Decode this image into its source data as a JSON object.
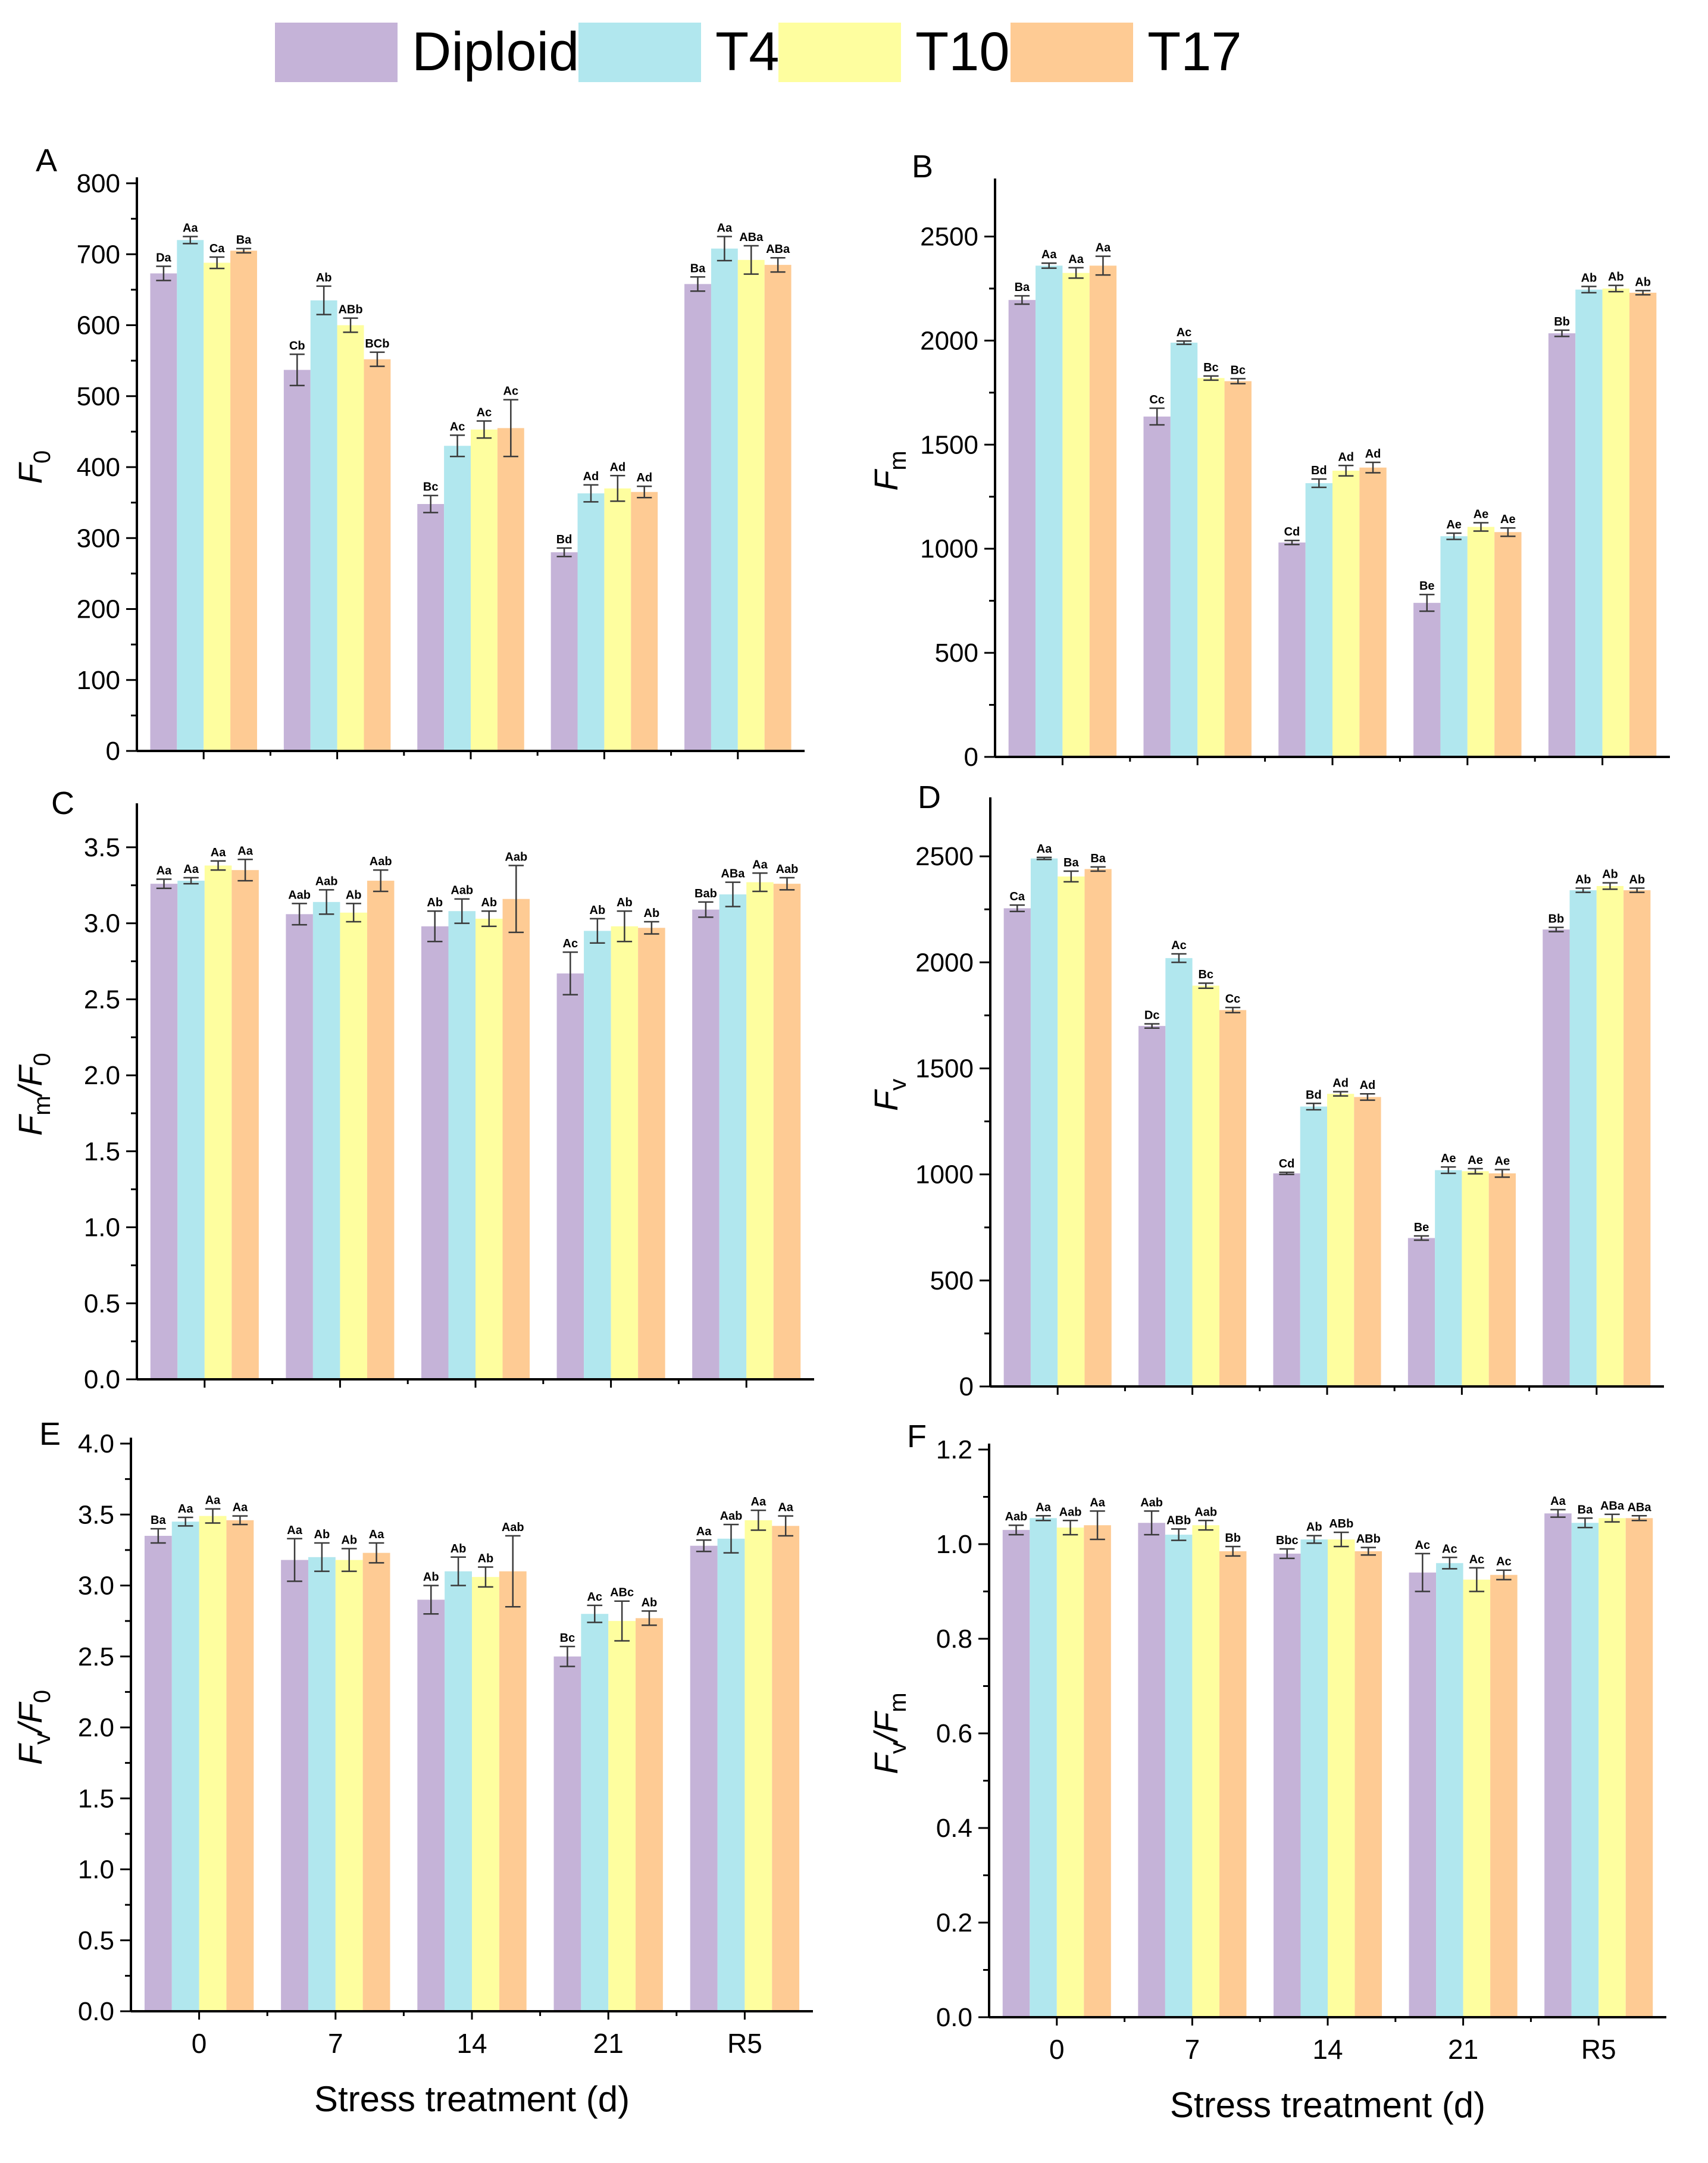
{
  "legend": {
    "items": [
      {
        "label": "Diploid",
        "color": "#c5b3d8"
      },
      {
        "label": "T4",
        "color": "#b1e7ee"
      },
      {
        "label": "T10",
        "color": "#fefe9f"
      },
      {
        "label": "T17",
        "color": "#fecb94"
      }
    ]
  },
  "chart_data": [
    {
      "panel": "A",
      "type": "bar",
      "ylabel": "F",
      "ylabel_sub": "0",
      "ylabel_sub2": "",
      "ylim": [
        0,
        800
      ],
      "yticks": [
        0,
        100,
        200,
        300,
        400,
        500,
        600,
        700,
        800
      ],
      "ytick_labels": [
        "0",
        "100",
        "200",
        "300",
        "400",
        "500",
        "600",
        "700",
        "800"
      ],
      "categories": [
        "0",
        "7",
        "14",
        "21",
        "R5"
      ],
      "xlabel": "",
      "series": [
        {
          "name": "Diploid",
          "values": [
            673,
            537,
            348,
            280,
            658
          ],
          "errors": [
            10,
            22,
            12,
            6,
            10
          ],
          "labels": [
            "Da",
            "Cb",
            "Bc",
            "Bd",
            "Ba"
          ]
        },
        {
          "name": "T4",
          "values": [
            720,
            635,
            430,
            363,
            708
          ],
          "errors": [
            5,
            20,
            15,
            12,
            17
          ],
          "labels": [
            "Aa",
            "Ab",
            "Ac",
            "Ad",
            "Aa"
          ]
        },
        {
          "name": "T10",
          "values": [
            688,
            600,
            453,
            370,
            692
          ],
          "errors": [
            8,
            10,
            12,
            18,
            20
          ],
          "labels": [
            "Ca",
            "ABb",
            "Ac",
            "Ad",
            "ABa"
          ]
        },
        {
          "name": "T17",
          "values": [
            705,
            552,
            455,
            365,
            685
          ],
          "errors": [
            3,
            10,
            40,
            8,
            10
          ],
          "labels": [
            "Ba",
            "BCb",
            "Ac",
            "Ad",
            "ABa"
          ]
        }
      ]
    },
    {
      "panel": "B",
      "type": "bar",
      "ylabel": "F",
      "ylabel_sub": "m",
      "ylabel_sub2": "",
      "ylim": [
        0,
        2750
      ],
      "yticks": [
        0,
        500,
        1000,
        1500,
        2000,
        2500
      ],
      "ytick_labels": [
        "0",
        "500",
        "1000",
        "1500",
        "2000",
        "2500"
      ],
      "categories": [
        "0",
        "7",
        "14",
        "21",
        "R5"
      ],
      "xlabel": "",
      "series": [
        {
          "name": "Diploid",
          "values": [
            2195,
            1635,
            1030,
            740,
            2035
          ],
          "errors": [
            20,
            40,
            10,
            40,
            15
          ],
          "labels": [
            "Ba",
            "Cc",
            "Cd",
            "Be",
            "Bb"
          ]
        },
        {
          "name": "T4",
          "values": [
            2360,
            1990,
            1315,
            1060,
            2245
          ],
          "errors": [
            12,
            8,
            20,
            15,
            15
          ],
          "labels": [
            "Aa",
            "Ac",
            "Bd",
            "Ae",
            "Ab"
          ]
        },
        {
          "name": "T10",
          "values": [
            2325,
            1820,
            1375,
            1105,
            2250
          ],
          "errors": [
            25,
            10,
            25,
            20,
            15
          ],
          "labels": [
            "Aa",
            "Bc",
            "Ad",
            "Ae",
            "Ab"
          ]
        },
        {
          "name": "T17",
          "values": [
            2360,
            1805,
            1390,
            1080,
            2230
          ],
          "errors": [
            45,
            12,
            25,
            20,
            10
          ],
          "labels": [
            "Aa",
            "Bc",
            "Ad",
            "Ae",
            "Ab"
          ]
        }
      ]
    },
    {
      "panel": "C",
      "type": "bar",
      "ylabel": "F",
      "ylabel_sub": "m",
      "ylabel_mid": "/F",
      "ylabel_sub2": "0",
      "ylim": [
        0,
        3.75
      ],
      "yticks": [
        0,
        0.5,
        1.0,
        1.5,
        2.0,
        2.5,
        3.0,
        3.5
      ],
      "ytick_labels": [
        "0.0",
        "0.5",
        "1.0",
        "1.5",
        "2.0",
        "2.5",
        "3.0",
        "3.5"
      ],
      "categories": [
        "0",
        "7",
        "14",
        "21",
        "R5"
      ],
      "xlabel": "",
      "series": [
        {
          "name": "Diploid",
          "values": [
            3.26,
            3.06,
            2.98,
            2.67,
            3.09
          ],
          "errors": [
            0.03,
            0.07,
            0.1,
            0.14,
            0.05
          ],
          "labels": [
            "Aa",
            "Aab",
            "Ab",
            "Ac",
            "Bab"
          ]
        },
        {
          "name": "T4",
          "values": [
            3.28,
            3.14,
            3.08,
            2.95,
            3.19
          ],
          "errors": [
            0.02,
            0.08,
            0.08,
            0.08,
            0.08
          ],
          "labels": [
            "Aa",
            "Aab",
            "Aab",
            "Ab",
            "ABa"
          ]
        },
        {
          "name": "T10",
          "values": [
            3.38,
            3.07,
            3.03,
            2.98,
            3.27
          ],
          "errors": [
            0.03,
            0.06,
            0.05,
            0.1,
            0.06
          ],
          "labels": [
            "Aa",
            "Ab",
            "Ab",
            "Ab",
            "Aa"
          ]
        },
        {
          "name": "T17",
          "values": [
            3.35,
            3.28,
            3.16,
            2.97,
            3.26
          ],
          "errors": [
            0.07,
            0.07,
            0.22,
            0.04,
            0.04
          ],
          "labels": [
            "Aa",
            "Aab",
            "Aab",
            "Ab",
            "Aab"
          ]
        }
      ]
    },
    {
      "panel": "D",
      "type": "bar",
      "ylabel": "F",
      "ylabel_sub": "v",
      "ylabel_sub2": "",
      "ylim": [
        0,
        2750
      ],
      "yticks": [
        0,
        500,
        1000,
        1500,
        2000,
        2500
      ],
      "ytick_labels": [
        "0",
        "500",
        "1000",
        "1500",
        "2000",
        "2500"
      ],
      "categories": [
        "0",
        "7",
        "14",
        "21",
        "R5"
      ],
      "xlabel": "",
      "series": [
        {
          "name": "Diploid",
          "values": [
            2255,
            1700,
            1005,
            700,
            2155
          ],
          "errors": [
            15,
            10,
            5,
            10,
            10
          ],
          "labels": [
            "Ca",
            "Dc",
            "Cd",
            "Be",
            "Bb"
          ]
        },
        {
          "name": "T4",
          "values": [
            2490,
            2020,
            1320,
            1020,
            2340
          ],
          "errors": [
            5,
            20,
            15,
            15,
            10
          ],
          "labels": [
            "Aa",
            "Ac",
            "Bd",
            "Ae",
            "Ab"
          ]
        },
        {
          "name": "T10",
          "values": [
            2405,
            1890,
            1380,
            1015,
            2360
          ],
          "errors": [
            25,
            12,
            10,
            12,
            15
          ],
          "labels": [
            "Ba",
            "Bc",
            "Ad",
            "Ae",
            "Ab"
          ]
        },
        {
          "name": "T17",
          "values": [
            2440,
            1775,
            1365,
            1005,
            2340
          ],
          "errors": [
            10,
            12,
            15,
            18,
            10
          ],
          "labels": [
            "Ba",
            "Cc",
            "Ad",
            "Ae",
            "Ab"
          ]
        }
      ]
    },
    {
      "panel": "E",
      "type": "bar",
      "ylabel": "F",
      "ylabel_sub": "v",
      "ylabel_mid": "/F",
      "ylabel_sub2": "0",
      "ylim": [
        0,
        4.0
      ],
      "yticks": [
        0,
        0.5,
        1.0,
        1.5,
        2.0,
        2.5,
        3.0,
        3.5,
        4.0
      ],
      "ytick_labels": [
        "0.0",
        "0.5",
        "1.0",
        "1.5",
        "2.0",
        "2.5",
        "3.0",
        "3.5",
        "4.0"
      ],
      "categories": [
        "0",
        "7",
        "14",
        "21",
        "R5"
      ],
      "xlabel": "Stress treatment (d)",
      "series": [
        {
          "name": "Diploid",
          "values": [
            3.35,
            3.18,
            2.9,
            2.5,
            3.28
          ],
          "errors": [
            0.05,
            0.15,
            0.1,
            0.07,
            0.04
          ],
          "labels": [
            "Ba",
            "Aa",
            "Ab",
            "Bc",
            "Aa"
          ]
        },
        {
          "name": "T4",
          "values": [
            3.45,
            3.2,
            3.1,
            2.8,
            3.33
          ],
          "errors": [
            0.03,
            0.1,
            0.1,
            0.06,
            0.1
          ],
          "labels": [
            "Aa",
            "Ab",
            "Ab",
            "Ac",
            "Aab"
          ]
        },
        {
          "name": "T10",
          "values": [
            3.49,
            3.18,
            3.06,
            2.75,
            3.46
          ],
          "errors": [
            0.05,
            0.08,
            0.07,
            0.14,
            0.07
          ],
          "labels": [
            "Aa",
            "Ab",
            "Ab",
            "ABc",
            "Aa"
          ]
        },
        {
          "name": "T17",
          "values": [
            3.46,
            3.23,
            3.1,
            2.77,
            3.42
          ],
          "errors": [
            0.03,
            0.07,
            0.25,
            0.05,
            0.07
          ],
          "labels": [
            "Aa",
            "Aa",
            "Aab",
            "Ab",
            "Aa"
          ]
        }
      ]
    },
    {
      "panel": "F",
      "type": "bar",
      "ylabel": "F",
      "ylabel_sub": "v",
      "ylabel_mid": "/F",
      "ylabel_sub2": "m",
      "ylim": [
        0,
        1.2
      ],
      "yticks": [
        0,
        0.2,
        0.4,
        0.6,
        0.8,
        1.0,
        1.2
      ],
      "ytick_labels": [
        "0.0",
        "0.2",
        "0.4",
        "0.6",
        "0.8",
        "1.0",
        "1.2"
      ],
      "categories": [
        "0",
        "7",
        "14",
        "21",
        "R5"
      ],
      "xlabel": "Stress treatment (d)",
      "series": [
        {
          "name": "Diploid",
          "values": [
            1.03,
            1.045,
            0.98,
            0.94,
            1.065
          ],
          "errors": [
            0.01,
            0.025,
            0.01,
            0.04,
            0.008
          ],
          "labels": [
            "Aab",
            "Aab",
            "Bbc",
            "Ac",
            "Aa"
          ]
        },
        {
          "name": "T4",
          "values": [
            1.055,
            1.02,
            1.01,
            0.96,
            1.045
          ],
          "errors": [
            0.005,
            0.012,
            0.008,
            0.012,
            0.01
          ],
          "labels": [
            "Aa",
            "ABb",
            "Ab",
            "Ac",
            "Ba"
          ]
        },
        {
          "name": "T10",
          "values": [
            1.035,
            1.04,
            1.01,
            0.925,
            1.055
          ],
          "errors": [
            0.015,
            0.01,
            0.015,
            0.025,
            0.008
          ],
          "labels": [
            "Aab",
            "Aab",
            "ABb",
            "Ac",
            "ABa"
          ]
        },
        {
          "name": "T17",
          "values": [
            1.04,
            0.985,
            0.985,
            0.935,
            1.055
          ],
          "errors": [
            0.03,
            0.01,
            0.008,
            0.01,
            0.005
          ],
          "labels": [
            "Aa",
            "Bb",
            "ABb",
            "Ac",
            "ABa"
          ]
        }
      ]
    }
  ]
}
